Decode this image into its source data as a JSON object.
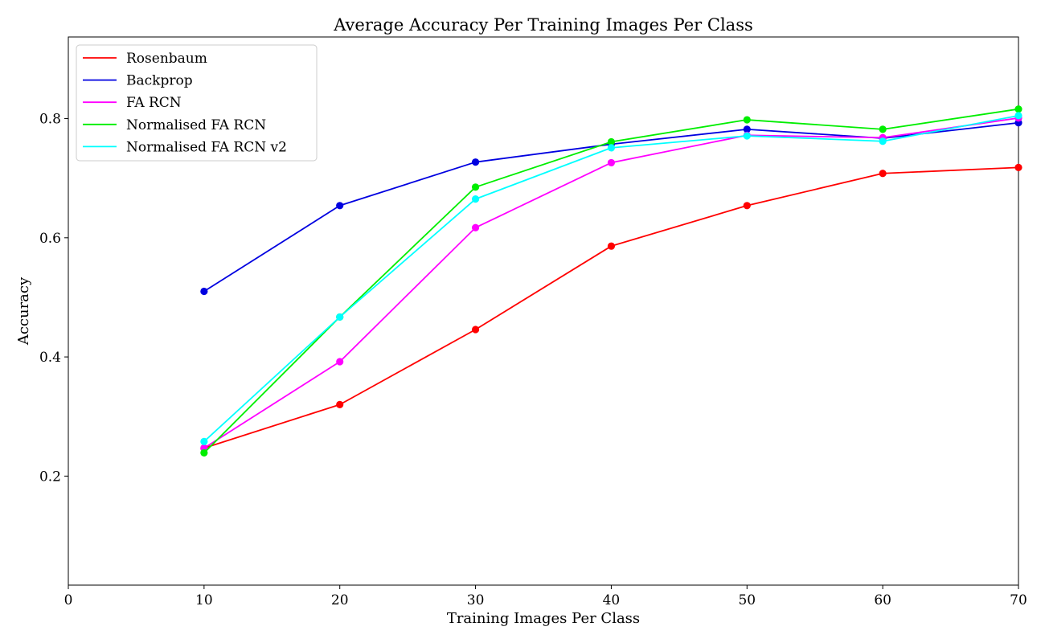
{
  "chart_data": {
    "type": "line",
    "title": "Average Accuracy Per Training Images Per Class",
    "xlabel": "Training Images Per Class",
    "ylabel": "Accuracy",
    "xlim": [
      0,
      70
    ],
    "ylim": [
      0.017,
      0.937
    ],
    "xticks": [
      0,
      10,
      20,
      30,
      40,
      50,
      60,
      70
    ],
    "yticks": [
      0.2,
      0.4,
      0.6,
      0.8
    ],
    "xtick_labels": [
      "0",
      "10",
      "20",
      "30",
      "40",
      "50",
      "60",
      "70"
    ],
    "ytick_labels": [
      "0.2",
      "0.4",
      "0.6",
      "0.8"
    ],
    "grid": false,
    "legend_position": "upper-left",
    "x": [
      10,
      20,
      30,
      40,
      50,
      60,
      70
    ],
    "series": [
      {
        "name": "Rosenbaum",
        "color": "#ff0000",
        "values": [
          0.247,
          0.32,
          0.446,
          0.586,
          0.654,
          0.708,
          0.718
        ]
      },
      {
        "name": "Backprop",
        "color": "#0000e0",
        "values": [
          0.51,
          0.654,
          0.727,
          0.757,
          0.782,
          0.767,
          0.793
        ]
      },
      {
        "name": "FA RCN",
        "color": "#ff00ff",
        "values": [
          0.247,
          0.392,
          0.617,
          0.726,
          0.772,
          0.768,
          0.801
        ]
      },
      {
        "name": "Normalised FA RCN",
        "color": "#00ee00",
        "values": [
          0.239,
          0.467,
          0.685,
          0.761,
          0.798,
          0.782,
          0.816
        ]
      },
      {
        "name": "Normalised FA RCN v2",
        "color": "#00ffff",
        "values": [
          0.258,
          0.467,
          0.665,
          0.751,
          0.771,
          0.762,
          0.805
        ]
      }
    ]
  }
}
